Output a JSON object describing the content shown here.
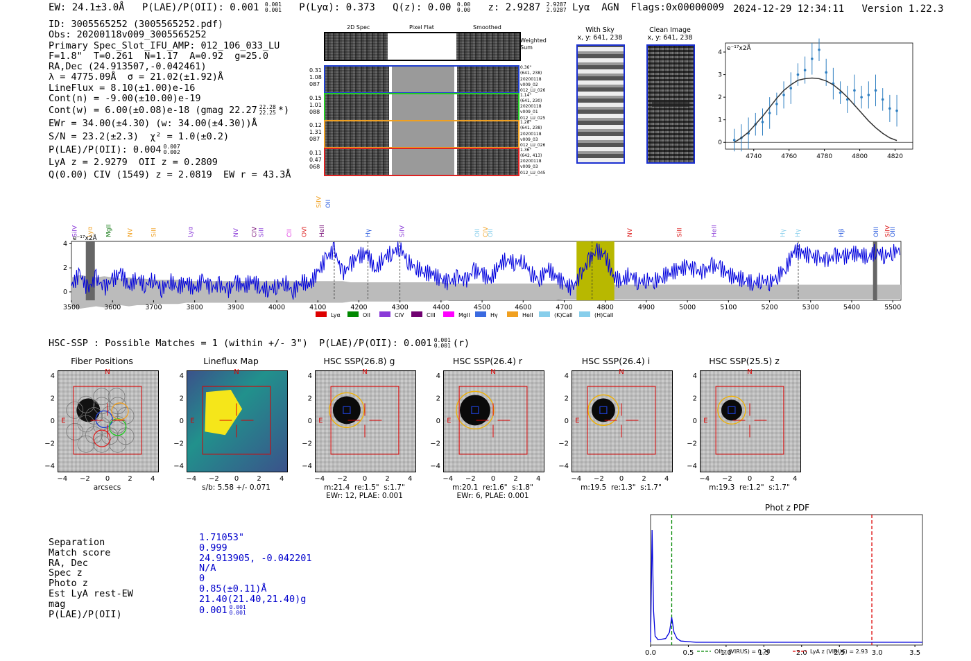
{
  "header": {
    "ew": "EW: 24.1±3.0Å",
    "plae": "P(LAE)/P(OII): 0.001",
    "plae_hi": "0.001",
    "plae_lo": "0.001",
    "plya": "P(Lyα): 0.373",
    "qz": "Q(z): 0.00",
    "qz_hi": "0.00",
    "qz_lo": "0.00",
    "z": "z: 2.9287",
    "z_hi": "2.9287",
    "z_lo": "2.9287",
    "classification": "Lyα  AGN  Flags:0x00000009",
    "datetime": "2024-12-29 12:34:11",
    "version": "Version 1.22.3"
  },
  "info": {
    "id": "ID: 3005565252 (3005565252.pdf)",
    "obs": "Obs: 20200118v009_3005565252",
    "primary": "Primary Spec_Slot_IFU_AMP: 012_106_033_LU",
    "fit": "F=1.8\"  T=0.261  N=1.17  A=0.92  g=25.0",
    "radec": "RA,Dec (24.913507,-0.042461)",
    "lambda": "λ = 4775.09Å  σ = 21.02(±1.92)Å",
    "lineflux": "LineFlux = 8.10(±1.00)e-16",
    "contn": "Cont(n) = -9.00(±10.00)e-19",
    "contw": "Cont(w) = 6.00(±0.08)e-18 (gmag 22.27",
    "gmag_hi": "22.28",
    "gmag_lo": "22.25",
    "contw_end": "*)",
    "ewr": "EWr = 34.00(±4.30) (w: 34.00(±4.30))Å",
    "sn": "S/N = 23.2(±2.3)  χ² = 1.0(±0.2)",
    "plae": "P(LAE)/P(OII): 0.004",
    "plae_hi": "0.007",
    "plae_lo": "0.002",
    "lya": "LyA z = 2.9279  OII z = 0.2809",
    "civ": "Q(0.00) CIV (1549) z = 2.0819  EW r = 43.3Å"
  },
  "spec2d": {
    "col_labels": [
      "2D Spec",
      "Pixel Flat",
      "Smoothed"
    ],
    "weighted_sum": "Weighted Sum",
    "rows": [
      {
        "left": [
          "0.31",
          "1.08",
          "087"
        ],
        "right": [
          "0.36\"",
          "(641, 238)",
          "20200118",
          "v009_02",
          "012_LU_026"
        ],
        "color": "#1f3fd0"
      },
      {
        "left": [
          "0.15",
          "1.01",
          "088"
        ],
        "right": [
          "1.14\"",
          "(641, 230)",
          "20200118",
          "v009_01",
          "012_LU_025"
        ],
        "color": "#22cc22"
      },
      {
        "left": [
          "0.12",
          "1.31",
          "087"
        ],
        "right": [
          "1.28\"",
          "(641, 238)",
          "20200118",
          "v009_03",
          "012_LU_026"
        ],
        "color": "#f0a020"
      },
      {
        "left": [
          "0.11",
          "0.47",
          "068"
        ],
        "right": [
          "1.36\"",
          "(642, 413)",
          "20200118",
          "v009_03",
          "012_LU_045"
        ],
        "color": "#dd2222"
      }
    ]
  },
  "sky": {
    "title": "With Sky",
    "coords": "x, y: 641, 238"
  },
  "clean": {
    "title": "Clean Image",
    "coords": "x, y: 641, 238"
  },
  "line_fit": {
    "ylabel": "e⁻¹⁷x2Å"
  },
  "spectrum": {
    "ylabel": "e⁻¹⁷x2Å",
    "above_labels": [
      {
        "text": "SiIV",
        "color": "#f0a020",
        "x": 4102
      },
      {
        "text": "OII",
        "color": "#2255dd",
        "x": 4125
      }
    ],
    "line_labels": [
      {
        "text": "SiIV",
        "color": "#8a3ad8",
        "x": 3508
      },
      {
        "text": "Lyα",
        "color": "#f0a020",
        "x": 3545
      },
      {
        "text": "MgII",
        "color": "#117711",
        "x": 3590
      },
      {
        "text": "NV",
        "color": "#f0a020",
        "x": 3643
      },
      {
        "text": "SiII",
        "color": "#f0a020",
        "x": 3700
      },
      {
        "text": "Lyα",
        "color": "#8a3ad8",
        "x": 3790
      },
      {
        "text": "NV",
        "color": "#8a3ad8",
        "x": 3900
      },
      {
        "text": "CIV",
        "color": "#700070",
        "x": 3945
      },
      {
        "text": "SiII",
        "color": "#8a3ad8",
        "x": 3962
      },
      {
        "text": "CII",
        "color": "#dd22dd",
        "x": 4030
      },
      {
        "text": "OVI",
        "color": "#dd2222",
        "x": 4067
      },
      {
        "text": "HeII",
        "color": "#700070",
        "x": 4110
      },
      {
        "text": "Hγ",
        "color": "#2255dd",
        "x": 4222
      },
      {
        "text": "SiIV",
        "color": "#8a3ad8",
        "x": 4305
      },
      {
        "text": "OII",
        "color": "#87ceeb",
        "x": 4488
      },
      {
        "text": "CIV",
        "color": "#f0a020",
        "x": 4508
      },
      {
        "text": "OII",
        "color": "#87ceeb",
        "x": 4520
      },
      {
        "text": "NV",
        "color": "#dd2222",
        "x": 4860
      },
      {
        "text": "SiII",
        "color": "#dd2222",
        "x": 4980
      },
      {
        "text": "HeII",
        "color": "#8a3ad8",
        "x": 5065
      },
      {
        "text": "Hγ",
        "color": "#87ceeb",
        "x": 5232
      },
      {
        "text": "Hγ",
        "color": "#87ceeb",
        "x": 5268
      },
      {
        "text": "Hβ",
        "color": "#2255dd",
        "x": 5375
      },
      {
        "text": "OIII",
        "color": "#2255dd",
        "x": 5459
      },
      {
        "text": "SiIV",
        "color": "#dd2222",
        "x": 5487
      },
      {
        "text": "OIII",
        "color": "#2255dd",
        "x": 5500
      }
    ],
    "legend": [
      {
        "label": "Lyα",
        "color": "#dd0000"
      },
      {
        "label": "OII",
        "color": "#008800"
      },
      {
        "label": "CIV",
        "color": "#8a3ad8"
      },
      {
        "label": "CIII",
        "color": "#700070"
      },
      {
        "label": "MgII",
        "color": "#ff00ff"
      },
      {
        "label": "Hγ",
        "color": "#3a6ae0"
      },
      {
        "label": "HeII",
        "color": "#f0a020"
      },
      {
        "label": "(K)CaII",
        "color": "#87ceeb"
      },
      {
        "label": "(H)CaII",
        "color": "#87ceeb"
      }
    ]
  },
  "hsc": {
    "summary": "HSC-SSP : Possible Matches = 1 (within +/- 3\")  P(LAE)/P(OII): 0.001",
    "summary_hi": "0.001",
    "summary_lo": "0.001",
    "summary_end": "(r)",
    "north": "N",
    "east": "E",
    "panels": [
      {
        "title": "Fiber Positions",
        "caption1": "arcsecs",
        "caption2": ""
      },
      {
        "title": "Lineflux Map",
        "caption1": "s/b: 5.58 +/- 0.071",
        "caption2": ""
      },
      {
        "title": "HSC SSP(26.8) g",
        "caption1": "m:21.4  re:1.5\"  s:1.7\"",
        "caption2": "EWr: 12, PLAE: 0.001"
      },
      {
        "title": "HSC SSP(26.4) r",
        "caption1": "m:20.1  re:1.6\"  s:1.8\"",
        "caption2": "EWr: 6, PLAE: 0.001"
      },
      {
        "title": "HSC SSP(26.4) i",
        "caption1": "m:19.5  re:1.3\"  s:1.7\"",
        "caption2": ""
      },
      {
        "title": "HSC SSP(25.5) z",
        "caption1": "m:19.3  re:1.2\"  s:1.7\"",
        "caption2": ""
      }
    ]
  },
  "match": {
    "labels": [
      "Separation",
      "Match score",
      "RA, Dec",
      "Spec z",
      "Photo z",
      "Est LyA rest-EW",
      "mag",
      "P(LAE)/P(OII)"
    ],
    "values": [
      "1.71053\"",
      "0.999",
      "24.913905, -0.042201",
      "N/A",
      "0",
      "0.85(±0.11)Å",
      "21.40(21.40,21.40)g",
      "0.001"
    ],
    "plae_hi": "0.001",
    "plae_lo": "0.001"
  },
  "chart_data": [
    {
      "type": "line",
      "name": "line_fit",
      "x": [
        4729,
        4733,
        4737,
        4741,
        4745,
        4749,
        4753,
        4757,
        4761,
        4765,
        4769,
        4773,
        4777,
        4781,
        4785,
        4789,
        4793,
        4797,
        4801,
        4805,
        4809,
        4813,
        4817,
        4821
      ],
      "series": [
        {
          "name": "data",
          "values": [
            0.1,
            0.2,
            0.4,
            0.8,
            0.9,
            1.3,
            1.7,
            2.1,
            2.4,
            3.0,
            3.2,
            3.7,
            4.1,
            3.1,
            2.6,
            2.2,
            1.9,
            2.3,
            2.0,
            2.1,
            2.3,
            1.9,
            1.5,
            1.4
          ]
        },
        {
          "name": "fit",
          "values": [
            0.0,
            0.2,
            0.45,
            0.8,
            1.15,
            1.55,
            1.95,
            2.3,
            2.55,
            2.75,
            2.82,
            2.85,
            2.82,
            2.72,
            2.55,
            2.3,
            2.0,
            1.65,
            1.3,
            0.95,
            0.65,
            0.4,
            0.2,
            0.08
          ]
        }
      ],
      "xticks": [
        4740,
        4760,
        4780,
        4800,
        4820
      ],
      "yticks": [
        0,
        1,
        2,
        3,
        4
      ],
      "xlim": [
        4724,
        4830
      ],
      "ylim": [
        -0.3,
        4.4
      ]
    },
    {
      "type": "line",
      "name": "full_spectrum",
      "xlabel": "",
      "xlim": [
        3500,
        5520
      ],
      "ylim": [
        -0.7,
        4.2
      ],
      "xticks": [
        3500,
        3600,
        3700,
        3800,
        3900,
        4000,
        4100,
        4200,
        4300,
        4400,
        4500,
        4600,
        4700,
        4800,
        4900,
        5000,
        5100,
        5200,
        5300,
        5400,
        5500
      ],
      "yticks": [
        0,
        2,
        4
      ],
      "highlight_range": [
        4730,
        4822
      ],
      "gray_bands": [
        [
          3535,
          3557
        ],
        [
          5452,
          5462
        ]
      ],
      "dashed_lines": [
        4140,
        4222,
        4300,
        4768,
        5270
      ],
      "x": [
        3500,
        3520,
        3540,
        3560,
        3580,
        3600,
        3620,
        3640,
        3660,
        3680,
        3700,
        3720,
        3740,
        3760,
        3780,
        3800,
        3820,
        3840,
        3860,
        3880,
        3900,
        3920,
        3940,
        3960,
        3980,
        4000,
        4020,
        4040,
        4060,
        4080,
        4100,
        4120,
        4140,
        4160,
        4180,
        4200,
        4220,
        4240,
        4260,
        4280,
        4300,
        4320,
        4340,
        4360,
        4380,
        4400,
        4420,
        4440,
        4460,
        4480,
        4500,
        4520,
        4540,
        4560,
        4580,
        4600,
        4620,
        4640,
        4660,
        4680,
        4700,
        4720,
        4740,
        4760,
        4780,
        4800,
        4820,
        4840,
        4860,
        4880,
        4900,
        4920,
        4940,
        4960,
        4980,
        5000,
        5020,
        5040,
        5060,
        5080,
        5100,
        5120,
        5140,
        5160,
        5180,
        5200,
        5220,
        5240,
        5260,
        5280,
        5300,
        5320,
        5340,
        5360,
        5380,
        5400,
        5420,
        5440,
        5460,
        5480,
        5500,
        5520
      ],
      "series": [
        {
          "name": "flux",
          "values": [
            0.5,
            1.5,
            0.2,
            1.2,
            0.3,
            1.0,
            1.6,
            0.4,
            1.2,
            0.5,
            1.1,
            0.2,
            0.9,
            0.4,
            0.8,
            0.2,
            1.0,
            0.3,
            0.6,
            0.1,
            0.8,
            0.4,
            1.0,
            0.3,
            0.2,
            0.5,
            0.8,
            0.0,
            0.9,
            0.6,
            1.6,
            2.8,
            3.5,
            1.5,
            2.3,
            3.0,
            3.2,
            1.8,
            2.9,
            3.2,
            3.7,
            2.5,
            2.0,
            1.6,
            1.5,
            1.0,
            0.8,
            1.2,
            0.9,
            1.8,
            1.5,
            1.0,
            2.2,
            2.7,
            2.4,
            2.6,
            1.5,
            1.0,
            2.0,
            1.2,
            0.7,
            0.3,
            1.4,
            2.6,
            3.4,
            3.0,
            1.2,
            0.9,
            1.5,
            0.8,
            1.0,
            0.9,
            1.3,
            1.6,
            1.9,
            2.1,
            1.8,
            1.6,
            2.2,
            2.0,
            1.4,
            1.2,
            1.0,
            0.7,
            1.0,
            0.8,
            1.3,
            2.0,
            3.5,
            3.2,
            3.0,
            2.8,
            2.6,
            3.0,
            2.9,
            3.2,
            3.1,
            2.9,
            3.4,
            3.0,
            3.3,
            3.5
          ]
        },
        {
          "name": "error",
          "values": [
            1.2,
            1.4,
            1.3,
            1.2,
            1.3,
            1.2,
            1.1,
            1.2,
            1.1,
            1.1,
            1.0,
            1.0,
            1.0,
            1.0,
            0.9,
            0.9,
            0.9,
            0.9,
            0.9,
            0.9,
            0.9,
            0.9,
            0.9,
            0.9,
            0.9,
            0.9,
            0.9,
            0.9,
            0.9,
            0.9,
            0.9,
            0.9,
            0.9,
            0.9,
            0.8,
            0.8,
            0.8,
            0.8,
            0.8,
            0.8,
            0.8,
            0.8,
            0.8,
            0.8,
            0.8,
            0.8,
            0.7,
            0.7,
            0.7,
            0.7,
            0.7,
            0.7,
            0.7,
            0.7,
            0.7,
            0.7,
            0.7,
            0.7,
            0.7,
            0.7,
            0.6,
            0.6,
            0.6,
            0.6,
            0.6,
            0.6,
            0.6,
            0.6,
            0.6,
            0.6,
            0.6,
            0.6,
            0.6,
            0.6,
            0.6,
            0.6,
            0.6,
            0.6,
            0.6,
            0.6,
            0.6,
            0.6,
            0.6,
            0.6,
            0.6,
            0.6,
            0.6,
            0.6,
            0.6,
            0.6,
            0.6,
            0.6,
            0.6,
            0.6,
            0.6,
            0.6,
            0.6,
            0.6,
            0.6,
            0.6,
            0.6,
            0.6
          ]
        }
      ]
    },
    {
      "type": "line",
      "name": "phot_z_pdf",
      "title": "Phot z PDF",
      "xlim": [
        0.0,
        3.6
      ],
      "ylim": [
        0,
        1
      ],
      "xticks": [
        0.0,
        0.5,
        1.0,
        1.5,
        2.0,
        2.5,
        3.0,
        3.5
      ],
      "x": [
        0.0,
        0.02,
        0.04,
        0.06,
        0.1,
        0.2,
        0.25,
        0.27,
        0.28,
        0.29,
        0.31,
        0.35,
        0.4,
        0.6,
        1.0,
        2.0,
        3.6
      ],
      "series": [
        {
          "name": "pdf",
          "values": [
            0.0,
            0.9,
            0.25,
            0.05,
            0.02,
            0.03,
            0.08,
            0.16,
            0.2,
            0.16,
            0.08,
            0.03,
            0.01,
            0.0,
            0.0,
            0.0,
            0.0
          ]
        }
      ],
      "vlines": [
        {
          "label": "OII z (VIRUS) = 0.28",
          "x": 0.28,
          "color": "#008800"
        },
        {
          "label": "LyA z (VIRUS) = 2.93",
          "x": 2.93,
          "color": "#dd0000"
        }
      ]
    }
  ]
}
